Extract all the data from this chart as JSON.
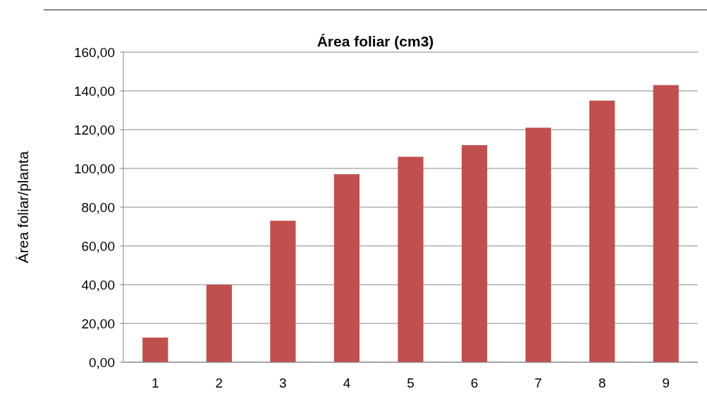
{
  "chart_data": {
    "type": "bar",
    "title": "Área foliar (cm3)",
    "ylabel": "Área foliar/planta",
    "categories": [
      "1",
      "2",
      "3",
      "4",
      "5",
      "6",
      "7",
      "8",
      "9"
    ],
    "values": [
      12.7,
      40,
      73,
      97,
      106,
      112,
      121,
      135,
      143
    ],
    "color": "#c0504d",
    "ylim": [
      0,
      160
    ],
    "yticks": [
      {
        "value": 0,
        "label": "0,00"
      },
      {
        "value": 20,
        "label": "20,00"
      },
      {
        "value": 40,
        "label": "40,00"
      },
      {
        "value": 60,
        "label": "60,00"
      },
      {
        "value": 80,
        "label": "80,00"
      },
      {
        "value": 100,
        "label": "100,00"
      },
      {
        "value": 120,
        "label": "120,00"
      },
      {
        "value": 140,
        "label": "140,00"
      },
      {
        "value": 160,
        "label": "160,00"
      }
    ],
    "grid": "y"
  }
}
